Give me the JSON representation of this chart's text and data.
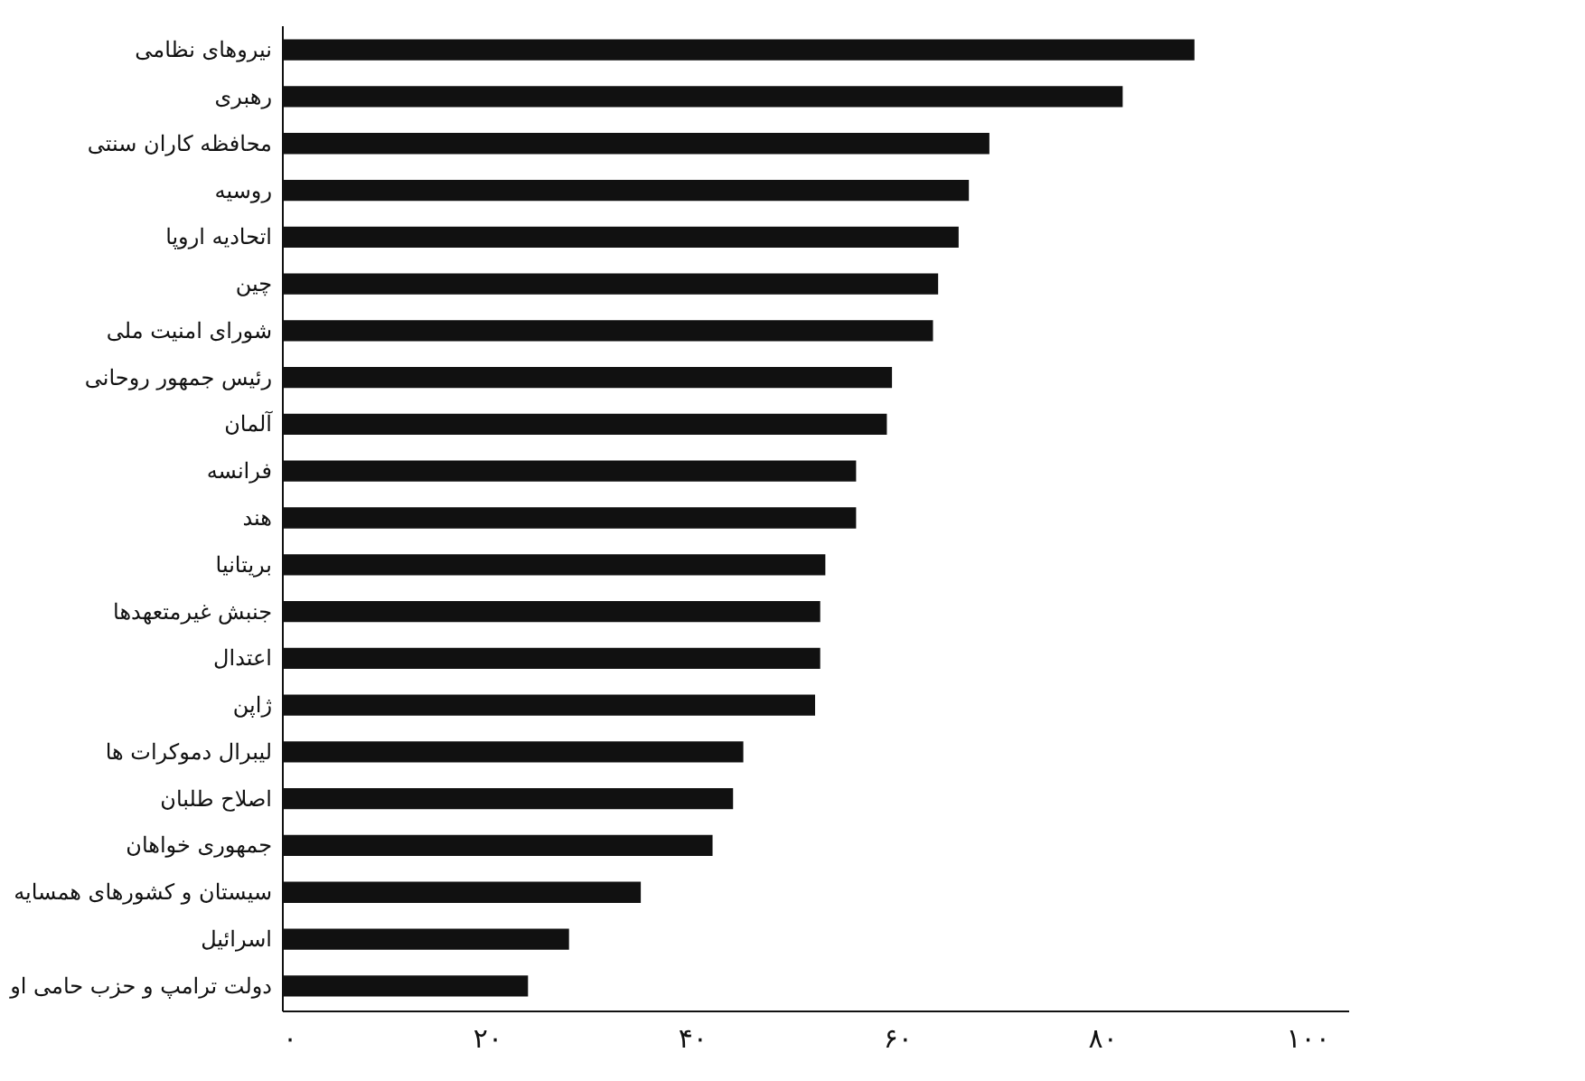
{
  "chart_data": {
    "type": "bar",
    "orientation": "horizontal",
    "categories": [
      "نیروهای نظامی",
      "رهبری",
      "محافظه کاران سنتی",
      "روسیه",
      "اتحادیه اروپا",
      "چین",
      "شورای امنیت ملی",
      "رئیس جمهور روحانی",
      "آلمان",
      "فرانسه",
      "هند",
      "بریتانیا",
      "جنبش غیرمتعهدها",
      "اعتدال",
      "ژاپن",
      "لیبرال دموکرات ها",
      "اصلاح طلبان",
      "جمهوری خواهان",
      "سیستان و کشورهای همسایه",
      "اسرائیل",
      "دولت ترامپ و حزب حامی او"
    ],
    "values": [
      89,
      82,
      69,
      67,
      66,
      64,
      63.5,
      59.5,
      59,
      56,
      56,
      53,
      52.5,
      52.5,
      52,
      45,
      44,
      42,
      35,
      28,
      24
    ],
    "color": "#111111",
    "xlim": [
      0,
      104
    ],
    "xticks": [
      {
        "value": 0,
        "label": "۰"
      },
      {
        "value": 20,
        "label": "۲۰"
      },
      {
        "value": 40,
        "label": "۴۰"
      },
      {
        "value": 60,
        "label": "۶۰"
      },
      {
        "value": 80,
        "label": "۸۰"
      },
      {
        "value": 100,
        "label": "۱۰۰"
      }
    ],
    "grid": false
  }
}
